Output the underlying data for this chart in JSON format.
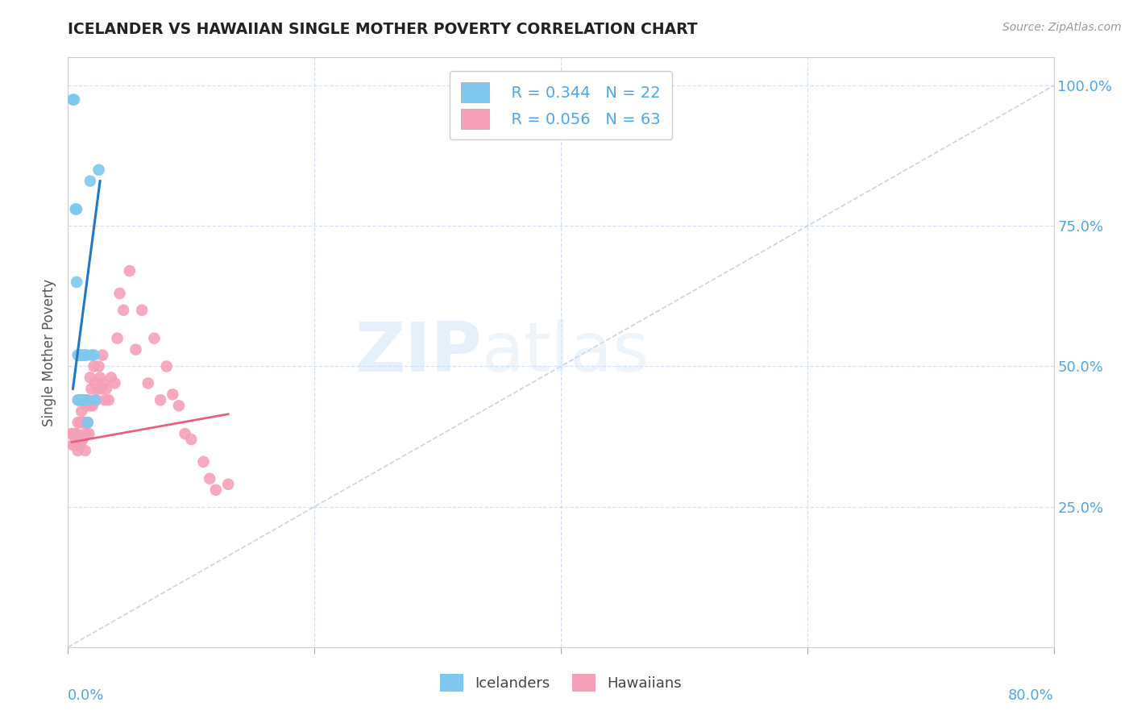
{
  "title": "ICELANDER VS HAWAIIAN SINGLE MOTHER POVERTY CORRELATION CHART",
  "source": "Source: ZipAtlas.com",
  "ylabel": "Single Mother Poverty",
  "xlim": [
    0,
    0.8
  ],
  "ylim": [
    0,
    1.05
  ],
  "watermark": "ZIPatlas",
  "legend_icelander_R": "R = 0.344",
  "legend_icelander_N": "N = 22",
  "legend_hawaiian_R": "R = 0.056",
  "legend_hawaiian_N": "N = 63",
  "icelander_color": "#7ec8f0",
  "hawaiian_color": "#f5a0b8",
  "icelander_line_color": "#2178c4",
  "hawaiian_line_color": "#e86080",
  "diagonal_color": "#c8d4e4",
  "icelander_x": [
    0.004,
    0.005,
    0.006,
    0.007,
    0.007,
    0.008,
    0.008,
    0.009,
    0.01,
    0.01,
    0.011,
    0.012,
    0.013,
    0.014,
    0.015,
    0.015,
    0.016,
    0.018,
    0.019,
    0.021,
    0.022,
    0.025
  ],
  "icelander_y": [
    0.975,
    0.975,
    0.78,
    0.78,
    0.65,
    0.52,
    0.44,
    0.52,
    0.52,
    0.44,
    0.52,
    0.52,
    0.44,
    0.52,
    0.52,
    0.44,
    0.4,
    0.83,
    0.52,
    0.52,
    0.44,
    0.85
  ],
  "hawaiian_x": [
    0.003,
    0.004,
    0.005,
    0.006,
    0.006,
    0.007,
    0.007,
    0.008,
    0.008,
    0.009,
    0.009,
    0.01,
    0.01,
    0.011,
    0.011,
    0.012,
    0.012,
    0.012,
    0.013,
    0.013,
    0.014,
    0.014,
    0.015,
    0.015,
    0.016,
    0.016,
    0.017,
    0.018,
    0.018,
    0.019,
    0.02,
    0.021,
    0.022,
    0.023,
    0.024,
    0.025,
    0.026,
    0.027,
    0.028,
    0.029,
    0.03,
    0.031,
    0.033,
    0.035,
    0.038,
    0.04,
    0.042,
    0.045,
    0.05,
    0.055,
    0.06,
    0.065,
    0.07,
    0.075,
    0.08,
    0.085,
    0.09,
    0.095,
    0.1,
    0.11,
    0.115,
    0.12,
    0.13
  ],
  "hawaiian_y": [
    0.38,
    0.36,
    0.38,
    0.37,
    0.36,
    0.38,
    0.36,
    0.4,
    0.35,
    0.44,
    0.37,
    0.4,
    0.36,
    0.42,
    0.37,
    0.44,
    0.4,
    0.37,
    0.44,
    0.4,
    0.35,
    0.38,
    0.43,
    0.4,
    0.44,
    0.4,
    0.38,
    0.48,
    0.43,
    0.46,
    0.43,
    0.5,
    0.47,
    0.44,
    0.46,
    0.5,
    0.48,
    0.46,
    0.52,
    0.47,
    0.44,
    0.46,
    0.44,
    0.48,
    0.47,
    0.55,
    0.63,
    0.6,
    0.67,
    0.53,
    0.6,
    0.47,
    0.55,
    0.44,
    0.5,
    0.45,
    0.43,
    0.38,
    0.37,
    0.33,
    0.3,
    0.28,
    0.29
  ]
}
